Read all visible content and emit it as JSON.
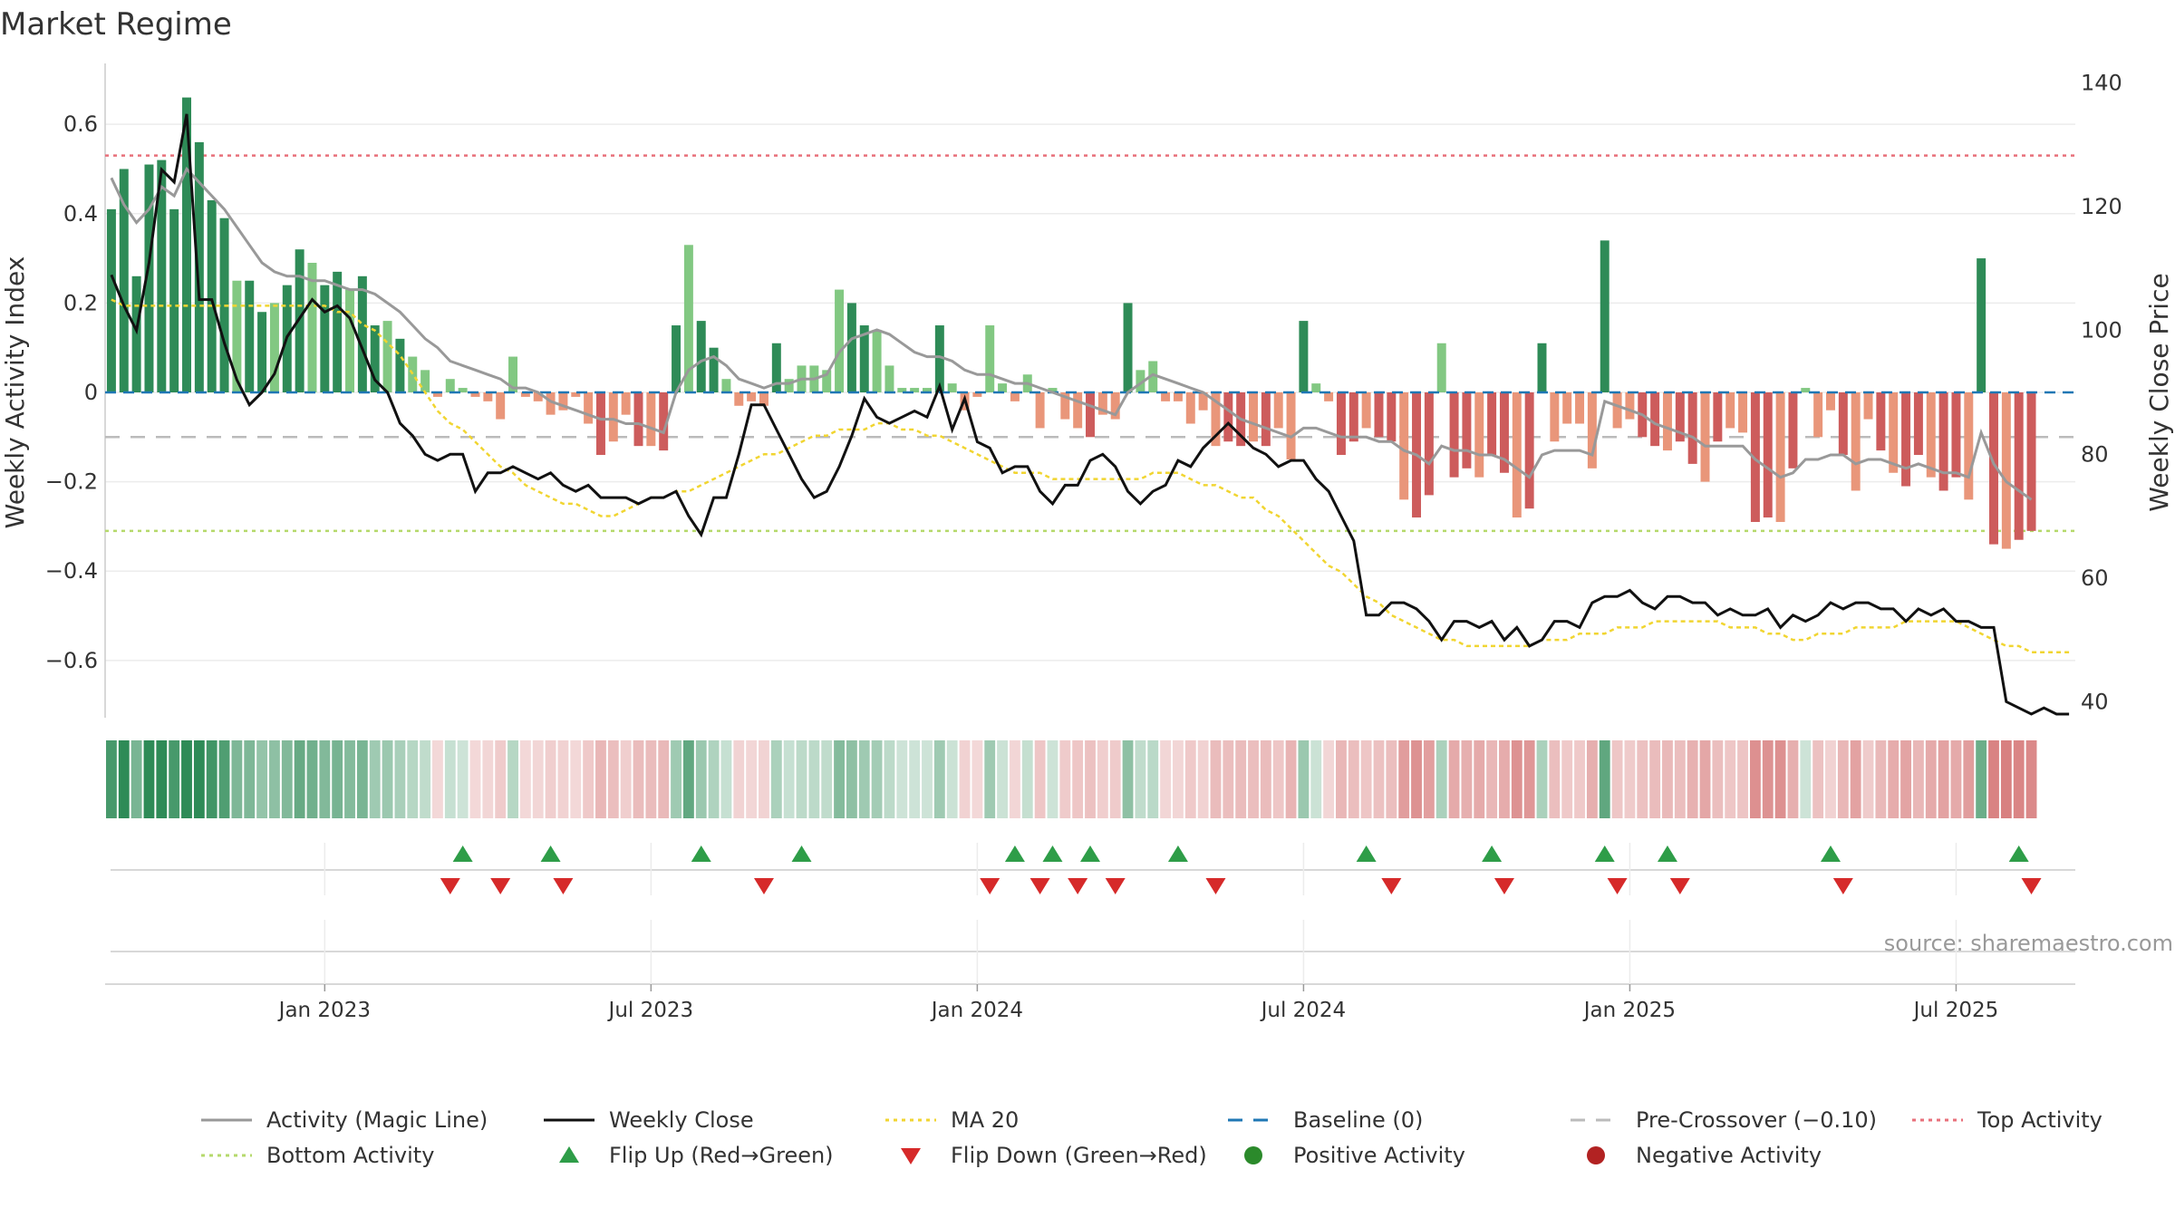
{
  "title": "Market Regime",
  "source": "source: sharemaestro.com",
  "colors": {
    "pos_dark": "#2e8b57",
    "pos_light": "#82c882",
    "neg_dark": "#cd5c5c",
    "neg_light": "#e9967a",
    "magic_line": "#999999",
    "weekly_close": "#111111",
    "ma20": "#f1d531",
    "baseline": "#1f77b4",
    "pre_crossover": "#bbbbbb",
    "top_activity": "#e8707b",
    "bottom_activity": "#b5d96b",
    "flip_up": "#2e9d48",
    "flip_down": "#d62a2a",
    "positive_activity": "#2b8a2b",
    "negative_activity": "#b22222"
  },
  "chart_data": {
    "type": "bar",
    "title": "Market Regime",
    "ylabel_left": "Weekly Activity Index",
    "ylabel_right": "Weekly Close Price",
    "ylim_left": [
      -0.72,
      0.72
    ],
    "ylim_right": [
      38,
      142
    ],
    "yticks_left": [
      0.6,
      0.4,
      0.2,
      0,
      -0.2,
      -0.4,
      -0.6
    ],
    "yticks_left_labels": [
      "0.6",
      "0.4",
      "0.2",
      "0",
      "−0.2",
      "−0.4",
      "−0.6"
    ],
    "yticks_right": [
      140,
      120,
      100,
      80,
      60,
      40
    ],
    "yticks_right_labels": [
      "140",
      "120",
      "100",
      "80",
      "60",
      "40"
    ],
    "x_tick_labels": [
      "Jan 2023",
      "Jul 2023",
      "Jan 2024",
      "Jul 2024",
      "Jan 2025",
      "Jul 2025"
    ],
    "x_tick_weeks": [
      17,
      43,
      69,
      95,
      121,
      147
    ],
    "weeks": 157,
    "reference_lines": {
      "top_activity": 0.53,
      "bottom_activity": -0.31,
      "pre_crossover": -0.1,
      "baseline": 0
    },
    "activity": [
      0.41,
      0.5,
      0.26,
      0.51,
      0.52,
      0.41,
      0.66,
      0.56,
      0.43,
      0.39,
      0.25,
      0.25,
      0.18,
      0.2,
      0.24,
      0.32,
      0.29,
      0.24,
      0.27,
      0.23,
      0.26,
      0.15,
      0.16,
      0.12,
      0.08,
      0.05,
      -0.01,
      0.03,
      0.01,
      -0.01,
      -0.02,
      -0.06,
      0.08,
      -0.01,
      -0.02,
      -0.05,
      -0.04,
      -0.01,
      -0.07,
      -0.14,
      -0.11,
      -0.05,
      -0.12,
      -0.12,
      -0.13,
      0.15,
      0.33,
      0.16,
      0.1,
      0.03,
      -0.03,
      -0.02,
      -0.03,
      0.11,
      0.03,
      0.06,
      0.06,
      0.05,
      0.23,
      0.2,
      0.15,
      0.14,
      0.06,
      0.01,
      0.01,
      0.01,
      0.15,
      0.02,
      -0.04,
      -0.01,
      0.15,
      0.02,
      -0.02,
      0.04,
      -0.08,
      0.01,
      -0.06,
      -0.08,
      -0.1,
      -0.05,
      -0.06,
      0.2,
      0.05,
      0.07,
      -0.02,
      -0.02,
      -0.07,
      -0.04,
      -0.12,
      -0.11,
      -0.12,
      -0.11,
      -0.12,
      -0.08,
      -0.15,
      0.16,
      0.02,
      -0.02,
      -0.14,
      -0.11,
      -0.08,
      -0.1,
      -0.11,
      -0.24,
      -0.28,
      -0.23,
      0.11,
      -0.19,
      -0.17,
      -0.19,
      -0.14,
      -0.18,
      -0.28,
      -0.26,
      0.11,
      -0.11,
      -0.07,
      -0.07,
      -0.17,
      0.34,
      -0.08,
      -0.06,
      -0.1,
      -0.12,
      -0.13,
      -0.11,
      -0.16,
      -0.2,
      -0.11,
      -0.08,
      -0.09,
      -0.29,
      -0.28,
      -0.29,
      -0.17,
      0.01,
      -0.1,
      -0.04,
      -0.14,
      -0.22,
      -0.06,
      -0.13,
      -0.18,
      -0.21,
      -0.14,
      -0.19,
      -0.22,
      -0.19,
      -0.24,
      0.3,
      -0.34,
      -0.35,
      -0.33,
      -0.31
    ],
    "magic_line": [
      0.48,
      0.42,
      0.38,
      0.41,
      0.46,
      0.44,
      0.5,
      0.47,
      0.44,
      0.41,
      0.37,
      0.33,
      0.29,
      0.27,
      0.26,
      0.26,
      0.25,
      0.25,
      0.24,
      0.23,
      0.23,
      0.22,
      0.2,
      0.18,
      0.15,
      0.12,
      0.1,
      0.07,
      0.06,
      0.05,
      0.04,
      0.03,
      0.01,
      0.01,
      0.0,
      -0.02,
      -0.03,
      -0.04,
      -0.05,
      -0.06,
      -0.06,
      -0.07,
      -0.07,
      -0.08,
      -0.09,
      0.0,
      0.05,
      0.07,
      0.08,
      0.06,
      0.03,
      0.02,
      0.01,
      0.02,
      0.02,
      0.03,
      0.03,
      0.04,
      0.09,
      0.12,
      0.13,
      0.14,
      0.13,
      0.11,
      0.09,
      0.08,
      0.08,
      0.07,
      0.05,
      0.04,
      0.04,
      0.03,
      0.02,
      0.02,
      0.01,
      0.0,
      -0.01,
      -0.02,
      -0.03,
      -0.04,
      -0.05,
      0.0,
      0.02,
      0.04,
      0.03,
      0.02,
      0.01,
      0.0,
      -0.02,
      -0.04,
      -0.06,
      -0.07,
      -0.08,
      -0.09,
      -0.1,
      -0.08,
      -0.08,
      -0.09,
      -0.1,
      -0.1,
      -0.1,
      -0.11,
      -0.11,
      -0.13,
      -0.14,
      -0.16,
      -0.12,
      -0.13,
      -0.13,
      -0.14,
      -0.14,
      -0.15,
      -0.17,
      -0.19,
      -0.14,
      -0.13,
      -0.13,
      -0.13,
      -0.14,
      -0.02,
      -0.03,
      -0.04,
      -0.05,
      -0.07,
      -0.08,
      -0.09,
      -0.1,
      -0.12,
      -0.12,
      -0.12,
      -0.12,
      -0.15,
      -0.17,
      -0.19,
      -0.18,
      -0.15,
      -0.15,
      -0.14,
      -0.14,
      -0.16,
      -0.15,
      -0.15,
      -0.16,
      -0.17,
      -0.16,
      -0.17,
      -0.18,
      -0.18,
      -0.19,
      -0.09,
      -0.16,
      -0.2,
      -0.22,
      -0.24
    ],
    "weekly_close": [
      109,
      104,
      100,
      111,
      126,
      124,
      135,
      105,
      105,
      98,
      92,
      88,
      90,
      93,
      99,
      102,
      105,
      103,
      104,
      102,
      97,
      92,
      90,
      85,
      83,
      80,
      79,
      80,
      80,
      74,
      77,
      77,
      78,
      77,
      76,
      77,
      75,
      74,
      75,
      73,
      73,
      73,
      72,
      73,
      73,
      74,
      70,
      67,
      73,
      73,
      80,
      88,
      88,
      84,
      80,
      76,
      73,
      74,
      78,
      83,
      89,
      86,
      85,
      86,
      87,
      86,
      91,
      84,
      89,
      82,
      81,
      77,
      78,
      78,
      74,
      72,
      75,
      75,
      79,
      80,
      78,
      74,
      72,
      74,
      75,
      79,
      78,
      81,
      83,
      85,
      83,
      81,
      80,
      78,
      79,
      79,
      76,
      74,
      70,
      66,
      54,
      54,
      56,
      56,
      55,
      53,
      50,
      53,
      53,
      52,
      53,
      50,
      52,
      49,
      50,
      53,
      53,
      52,
      56,
      57,
      57,
      58,
      56,
      55,
      57,
      57,
      56,
      56,
      54,
      55,
      54,
      54,
      55,
      52,
      54,
      53,
      54,
      56,
      55,
      56,
      56,
      55,
      55,
      53,
      55,
      54,
      55,
      53,
      53,
      52,
      52,
      40,
      39,
      38,
      39,
      38,
      38
    ],
    "ma20": [
      105,
      104,
      104,
      104,
      104,
      104,
      104,
      104,
      104,
      104,
      104,
      104,
      104,
      104,
      104,
      104,
      104,
      104,
      103,
      103,
      101,
      100,
      98,
      96,
      93,
      90,
      87,
      85,
      84,
      82,
      80,
      78,
      77,
      75,
      74,
      73,
      72,
      72,
      71,
      70,
      70,
      71,
      72,
      73,
      73,
      74,
      74,
      75,
      76,
      77,
      78,
      79,
      80,
      80,
      81,
      82,
      83,
      83,
      84,
      84,
      84,
      85,
      85,
      84,
      84,
      83,
      83,
      82,
      81,
      80,
      79,
      78,
      77,
      77,
      77,
      76,
      76,
      76,
      76,
      76,
      76,
      76,
      76,
      77,
      77,
      77,
      76,
      75,
      75,
      74,
      73,
      73,
      71,
      70,
      68,
      66,
      64,
      62,
      61,
      59,
      57,
      56,
      54,
      53,
      52,
      51,
      50,
      50,
      49,
      49,
      49,
      49,
      49,
      49,
      50,
      50,
      50,
      51,
      51,
      51,
      52,
      52,
      52,
      53,
      53,
      53,
      53,
      53,
      53,
      52,
      52,
      52,
      51,
      51,
      50,
      50,
      51,
      51,
      51,
      52,
      52,
      52,
      52,
      53,
      53,
      53,
      53,
      53,
      52,
      51,
      50,
      49,
      49,
      48,
      48,
      48,
      48
    ],
    "flip_up_weeks": [
      28,
      35,
      47,
      55,
      72,
      75,
      78,
      85,
      100,
      110,
      119,
      124,
      137,
      152
    ],
    "flip_down_weeks": [
      27,
      31,
      36,
      52,
      70,
      74,
      77,
      80,
      88,
      102,
      111,
      120,
      125,
      138,
      153
    ],
    "legend": [
      {
        "label": "Activity (Magic Line)",
        "marker": "line-solid-gray"
      },
      {
        "label": "Weekly Close",
        "marker": "line-solid-black"
      },
      {
        "label": "MA 20",
        "marker": "line-dotted-yellow"
      },
      {
        "label": "Baseline (0)",
        "marker": "line-dashed-blue"
      },
      {
        "label": "Pre-Crossover (−0.10)",
        "marker": "line-dashed-gray"
      },
      {
        "label": "Top Activity",
        "marker": "line-dotted-red"
      },
      {
        "label": "Bottom Activity",
        "marker": "line-dotted-green"
      },
      {
        "label": "Flip Up (Red→Green)",
        "marker": "triangle-up-green"
      },
      {
        "label": "Flip Down (Green→Red)",
        "marker": "triangle-down-red"
      },
      {
        "label": "Positive Activity",
        "marker": "circle-green"
      },
      {
        "label": "Negative Activity",
        "marker": "circle-red"
      }
    ]
  }
}
